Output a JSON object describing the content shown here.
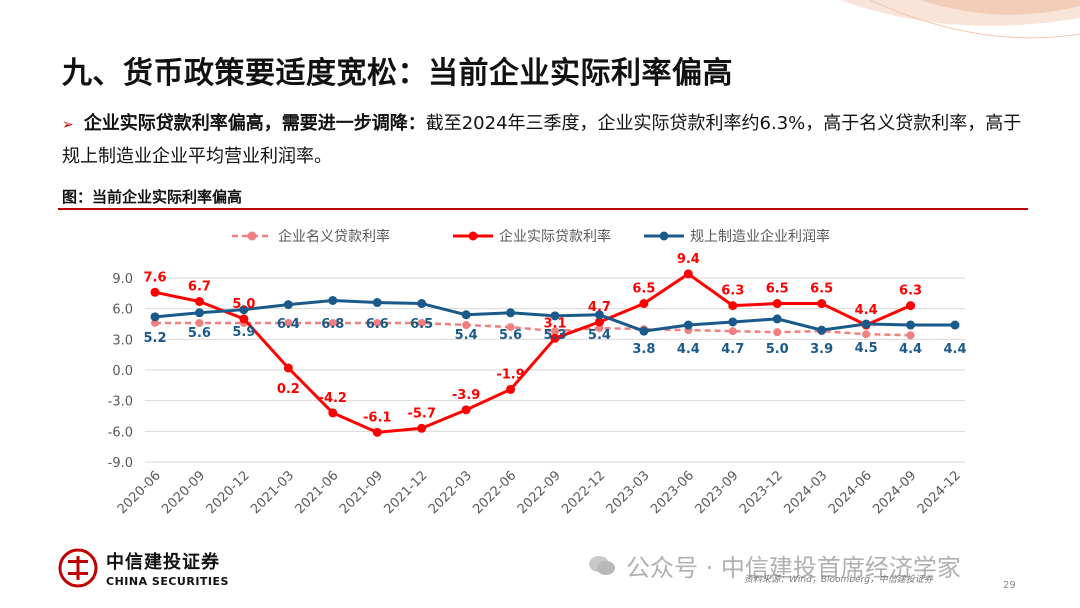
{
  "page": {
    "title": "九、货币政策要适度宽松：当前企业实际利率偏高",
    "summary_bold": "企业实际贷款利率偏高，需要进一步调降：",
    "summary_text": "截至2024年三季度，企业实际贷款利率约6.3%，高于名义贷款利率，高于规上制造业企业平均营业利润率。",
    "figure_title": "图：当前企业实际利率偏高",
    "source": "资料来源：Wind，Bloomberg，中信建投证券",
    "page_number": "29",
    "watermark": "公众号 · 中信建投首席经济学家",
    "logo_cn": "中信建投证券",
    "logo_en": "CHINA SECURITIES"
  },
  "chart_data": {
    "type": "line",
    "categories": [
      "2020-06",
      "2020-09",
      "2020-12",
      "2021-03",
      "2021-06",
      "2021-09",
      "2021-12",
      "2022-03",
      "2022-06",
      "2022-09",
      "2022-12",
      "2023-03",
      "2023-06",
      "2023-09",
      "2023-12",
      "2024-03",
      "2024-06",
      "2024-09",
      "2024-12"
    ],
    "ylim": [
      -9,
      9
    ],
    "yticks": [
      "9.0",
      "6.0",
      "3.0",
      "0.0",
      "-3.0",
      "-6.0",
      "-9.0"
    ],
    "legend_position": "top",
    "grid": true,
    "series": [
      {
        "name": "企业名义贷款利率",
        "color": "#f08080",
        "style": "dashed",
        "values": [
          4.6,
          4.6,
          4.6,
          4.6,
          4.6,
          4.6,
          4.6,
          4.4,
          4.2,
          3.8,
          4.1,
          4.0,
          3.9,
          3.8,
          3.7,
          3.8,
          3.5,
          3.4,
          null
        ],
        "labels": []
      },
      {
        "name": "企业实际贷款利率",
        "color": "#ff0000",
        "style": "solid",
        "values": [
          7.6,
          6.7,
          5.0,
          0.2,
          -4.2,
          -6.1,
          -5.7,
          -3.9,
          -1.9,
          3.1,
          4.7,
          6.5,
          9.4,
          6.3,
          6.5,
          6.5,
          4.4,
          6.3,
          null
        ],
        "labels": [
          "7.6",
          "6.7",
          "5.0",
          "0.2",
          "-4.2",
          "-6.1",
          "-5.7",
          "-3.9",
          "-1.9",
          "3.1",
          "4.7",
          "6.5",
          "9.4",
          "6.3",
          "6.5",
          "6.5",
          "4.4",
          "6.3",
          ""
        ]
      },
      {
        "name": "规上制造业企业利润率",
        "color": "#1a5a8a",
        "style": "solid",
        "values": [
          5.2,
          5.6,
          5.9,
          6.4,
          6.8,
          6.6,
          6.5,
          5.4,
          5.6,
          5.3,
          5.4,
          3.8,
          4.4,
          4.7,
          5.0,
          3.9,
          4.5,
          4.4,
          4.4
        ],
        "labels": [
          "5.2",
          "5.6",
          "5.9",
          "6.4",
          "6.8",
          "6.6",
          "6.5",
          "5.4",
          "5.6",
          "5.3",
          "5.4",
          "3.8",
          "4.4",
          "4.7",
          "5.0",
          "3.9",
          "4.5",
          "4.4",
          "4.4"
        ]
      }
    ]
  }
}
